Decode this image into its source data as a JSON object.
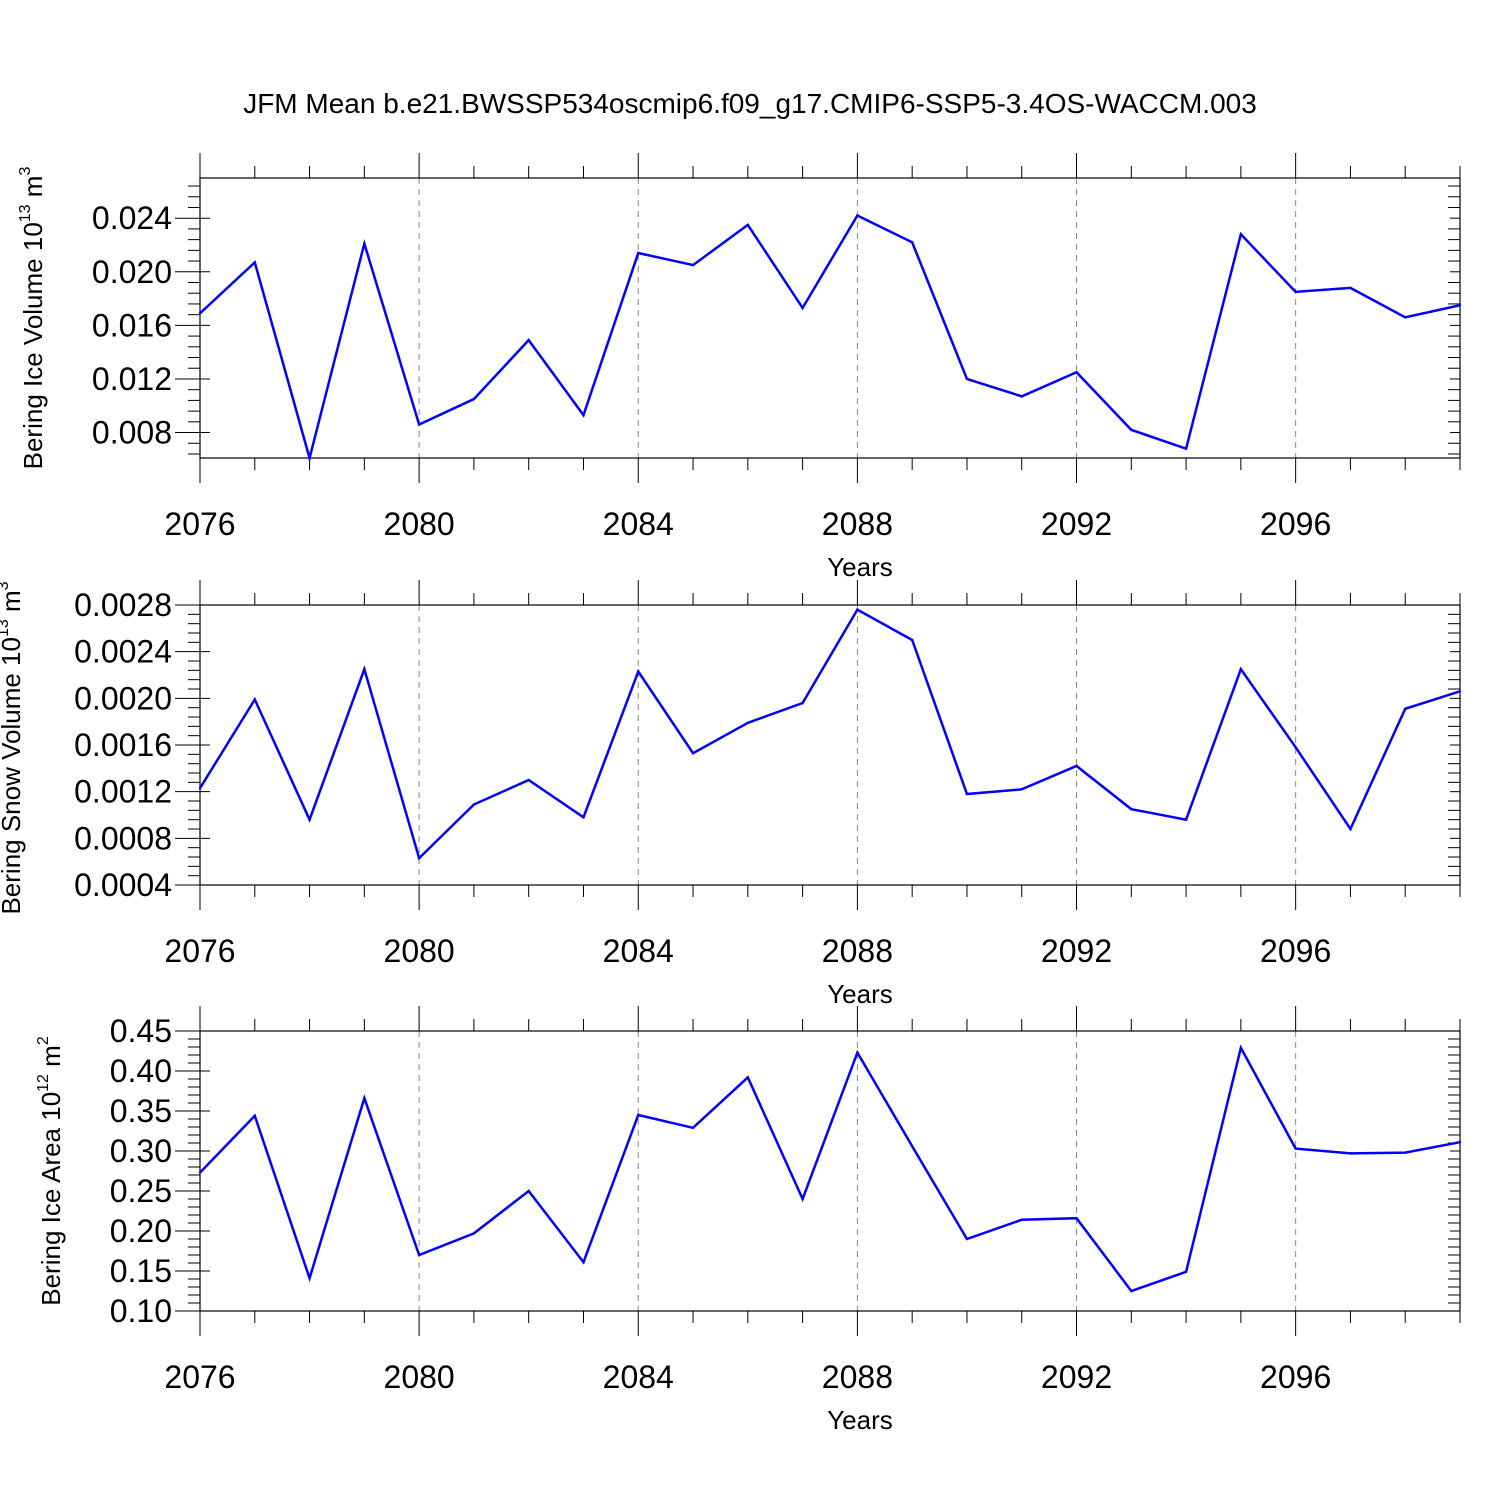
{
  "figure": {
    "title": "JFM Mean b.e21.BWSSP534oscmip6.f09_g17.CMIP6-SSP5-3.4OS-WACCM.003",
    "line_color": "#0000ff"
  },
  "chart_data": [
    {
      "type": "line",
      "title": "JFM Mean b.e21.BWSSP534oscmip6.f09_g17.CMIP6-SSP5-3.4OS-WACCM.003",
      "xlabel": "Years",
      "ylabel": {
        "prefix": "Bering Ice Volume 10",
        "exp": "13",
        "unit": " m",
        "unit_exp": "3"
      },
      "xlim": [
        2076,
        2099
      ],
      "ylim": [
        0.0061,
        0.027
      ],
      "x_ticks": [
        2076,
        2080,
        2084,
        2088,
        2092,
        2096
      ],
      "x_tick_labels": [
        "2076",
        "2080",
        "2084",
        "2088",
        "2092",
        "2096"
      ],
      "y_ticks": [
        0.008,
        0.012,
        0.016,
        0.02,
        0.024
      ],
      "y_tick_labels": [
        "0.008",
        "0.012",
        "0.016",
        "0.020",
        "0.024"
      ],
      "grid": "vertical dashed lines at major x ticks",
      "x": [
        2076,
        2077,
        2078,
        2079,
        2080,
        2081,
        2082,
        2083,
        2084,
        2085,
        2086,
        2087,
        2088,
        2089,
        2090,
        2091,
        2092,
        2093,
        2094,
        2095,
        2096,
        2097,
        2098,
        2099
      ],
      "series": [
        {
          "color": "#0000ff",
          "values": [
            0.0169,
            0.0207,
            0.0061,
            0.0221,
            0.0086,
            0.0105,
            0.0149,
            0.0093,
            0.0214,
            0.0205,
            0.0235,
            0.0173,
            0.0242,
            0.0222,
            0.012,
            0.0107,
            0.0125,
            0.0082,
            0.0068,
            0.0228,
            0.0185,
            0.0188,
            0.0166,
            0.0175
          ]
        }
      ]
    },
    {
      "type": "line",
      "xlabel": "Years",
      "ylabel": {
        "prefix": "Bering Snow Volume 10",
        "exp": "13",
        "unit": " m",
        "unit_exp": "3"
      },
      "xlim": [
        2076,
        2099
      ],
      "ylim": [
        0.0004,
        0.0028
      ],
      "x_ticks": [
        2076,
        2080,
        2084,
        2088,
        2092,
        2096
      ],
      "x_tick_labels": [
        "2076",
        "2080",
        "2084",
        "2088",
        "2092",
        "2096"
      ],
      "y_ticks": [
        0.0004,
        0.0008,
        0.0012,
        0.0016,
        0.002,
        0.0024,
        0.0028
      ],
      "y_tick_labels": [
        "0.0004",
        "0.0008",
        "0.0012",
        "0.0016",
        "0.0020",
        "0.0024",
        "0.0028"
      ],
      "grid": "vertical dashed lines at major x ticks",
      "x": [
        2076,
        2077,
        2078,
        2079,
        2080,
        2081,
        2082,
        2083,
        2084,
        2085,
        2086,
        2087,
        2088,
        2089,
        2090,
        2091,
        2092,
        2093,
        2094,
        2095,
        2096,
        2097,
        2098,
        2099
      ],
      "series": [
        {
          "color": "#0000ff",
          "values": [
            0.00123,
            0.00199,
            0.00096,
            0.00225,
            0.00063,
            0.00109,
            0.0013,
            0.00098,
            0.00223,
            0.00153,
            0.00179,
            0.00196,
            0.00276,
            0.0025,
            0.00118,
            0.00122,
            0.00142,
            0.00105,
            0.00096,
            0.00225,
            0.00158,
            0.00088,
            0.00191,
            0.00206
          ]
        }
      ]
    },
    {
      "type": "line",
      "xlabel": "Years",
      "ylabel": {
        "prefix": "Bering Ice Area 10",
        "exp": "12",
        "unit": " m",
        "unit_exp": "2"
      },
      "xlim": [
        2076,
        2099
      ],
      "ylim": [
        0.1,
        0.45
      ],
      "x_ticks": [
        2076,
        2080,
        2084,
        2088,
        2092,
        2096
      ],
      "x_tick_labels": [
        "2076",
        "2080",
        "2084",
        "2088",
        "2092",
        "2096"
      ],
      "y_ticks": [
        0.1,
        0.15,
        0.2,
        0.25,
        0.3,
        0.35,
        0.4,
        0.45
      ],
      "y_tick_labels": [
        "0.10",
        "0.15",
        "0.20",
        "0.25",
        "0.30",
        "0.35",
        "0.40",
        "0.45"
      ],
      "grid": "vertical dashed lines at major x ticks",
      "x": [
        2076,
        2077,
        2078,
        2079,
        2080,
        2081,
        2082,
        2083,
        2084,
        2085,
        2086,
        2087,
        2088,
        2089,
        2090,
        2091,
        2092,
        2093,
        2094,
        2095,
        2096,
        2097,
        2098,
        2099
      ],
      "series": [
        {
          "color": "#0000ff",
          "values": [
            0.273,
            0.344,
            0.141,
            0.366,
            0.17,
            0.197,
            0.25,
            0.161,
            0.345,
            0.329,
            0.392,
            0.24,
            0.423,
            0.306,
            0.19,
            0.214,
            0.216,
            0.125,
            0.149,
            0.429,
            0.303,
            0.297,
            0.298,
            0.311
          ]
        }
      ]
    }
  ]
}
